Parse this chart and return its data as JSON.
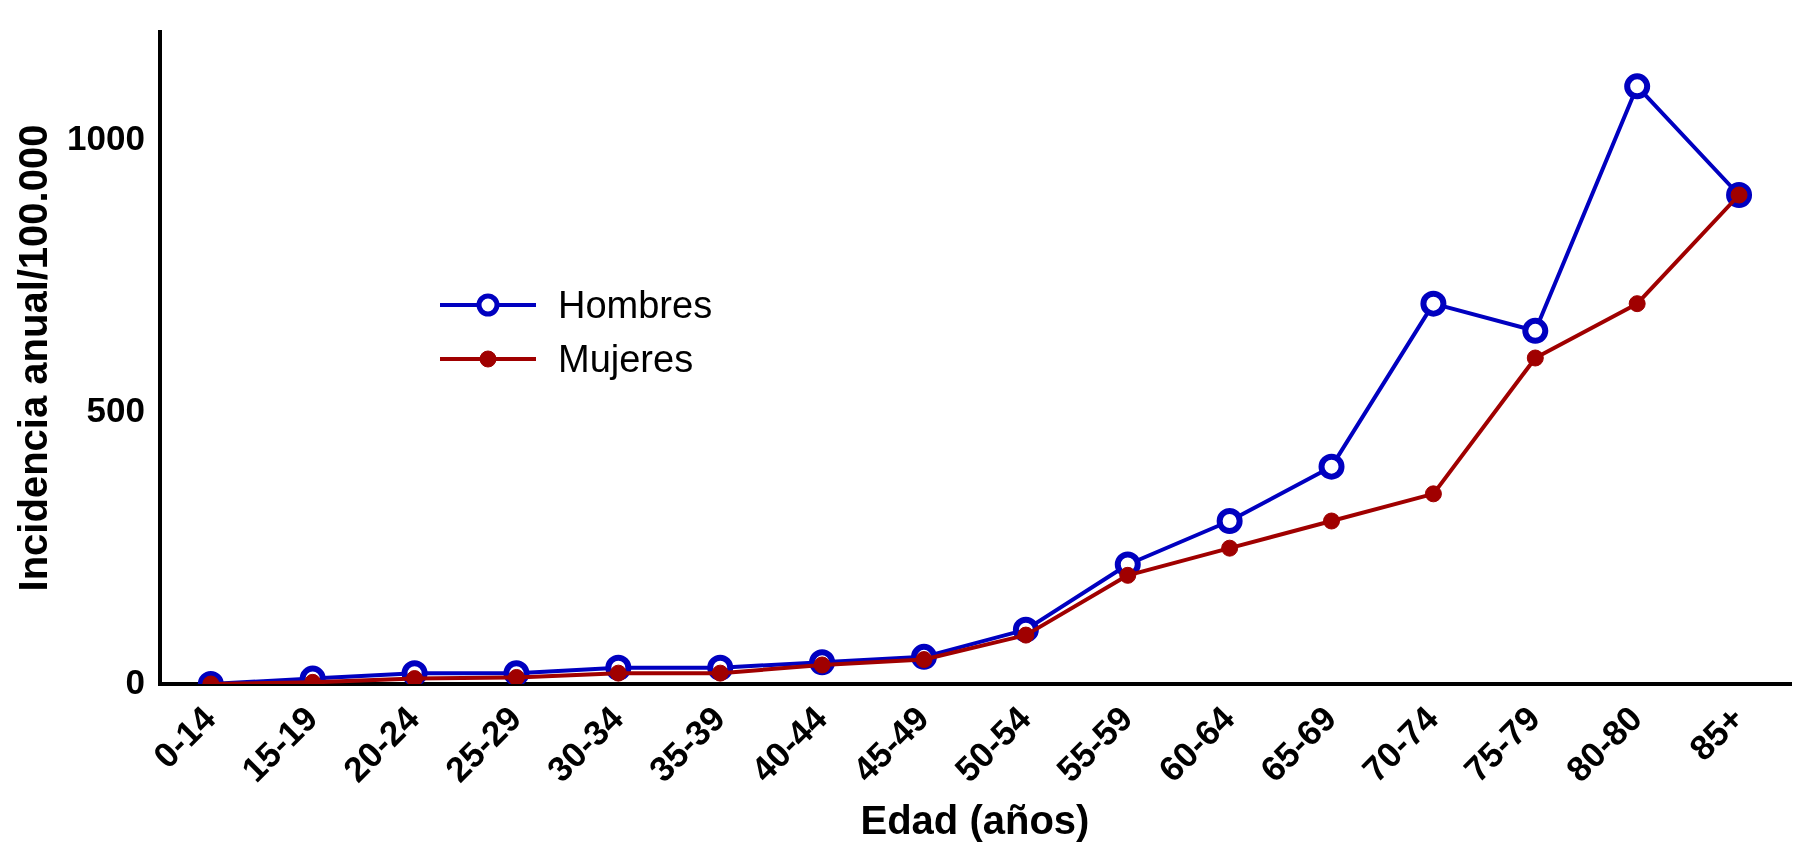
{
  "chart_data": {
    "type": "line",
    "xlabel": "Edad (años)",
    "ylabel": "Incidencia anual/100.000",
    "categories": [
      "0-14",
      "15-19",
      "20-24",
      "25-29",
      "30-34",
      "35-39",
      "40-44",
      "45-49",
      "50-54",
      "55-59",
      "60-64",
      "65-69",
      "70-74",
      "75-79",
      "80-80",
      "85+"
    ],
    "series": [
      {
        "name": "Hombres",
        "color": "#0000c0",
        "values": [
          0,
          10,
          20,
          20,
          30,
          30,
          40,
          50,
          100,
          220,
          300,
          400,
          700,
          650,
          1100,
          900
        ]
      },
      {
        "name": "Mujeres",
        "color": "#a00000",
        "values": [
          0,
          3,
          10,
          12,
          20,
          20,
          35,
          45,
          90,
          200,
          250,
          300,
          350,
          600,
          700,
          900
        ]
      }
    ],
    "ylim": [
      0,
      1200
    ],
    "yticks": [
      0,
      500,
      1000
    ],
    "grid": false,
    "legend": "left",
    "marker": "circle"
  }
}
